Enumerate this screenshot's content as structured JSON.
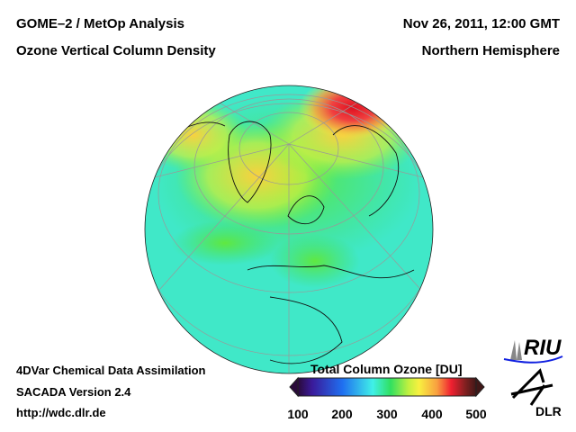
{
  "header": {
    "title_left_1": "GOME–2 / MetOp Analysis",
    "title_left_2": "Ozone Vertical Column Density",
    "title_right_1": "Nov 26, 2011, 12:00 GMT",
    "title_right_2": "Northern Hemisphere"
  },
  "footer": {
    "line1": "4DVar Chemical Data Assimilation",
    "line2": "SACADA Version 2.4",
    "line3": "http://wdc.dlr.de"
  },
  "colorbar": {
    "title": "Total Column Ozone [DU]",
    "ticks": [
      "100",
      "200",
      "300",
      "400",
      "500"
    ],
    "colors": [
      "#2a0a3a",
      "#3a1a9a",
      "#1f6ff0",
      "#40c8f0",
      "#40f0d0",
      "#30e060",
      "#a0f040",
      "#f8f040",
      "#f8a040",
      "#f04040",
      "#e01020",
      "#802020",
      "#401818"
    ]
  },
  "logos": {
    "riu": "RIU",
    "dlr": "DLR"
  }
}
